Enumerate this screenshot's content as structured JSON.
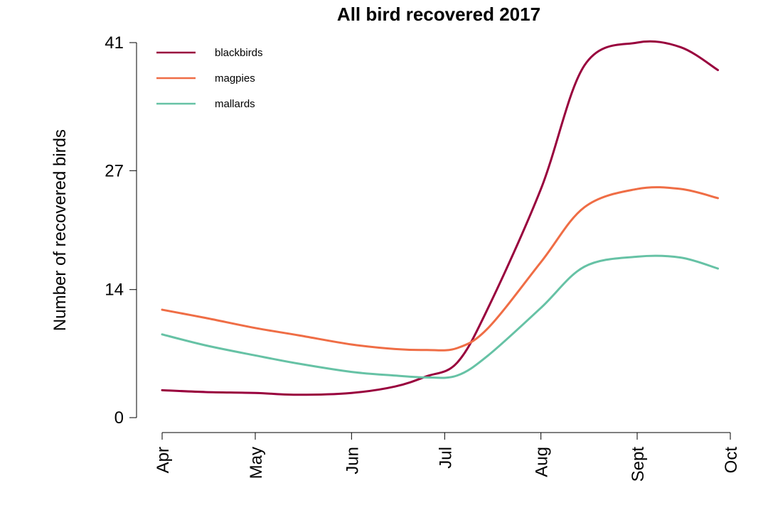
{
  "chart_data": {
    "type": "line",
    "title": "All bird recovered 2017",
    "xlabel": "",
    "ylabel": "Number of recovered birds",
    "x_ticks": [
      "Apr",
      "May",
      "Jun",
      "Jul",
      "Aug",
      "Sept",
      "Oct"
    ],
    "y_ticks": [
      0,
      14,
      27,
      41
    ],
    "ylim": [
      0,
      41
    ],
    "xlim": [
      "2017-04-01",
      "2017-10-01"
    ],
    "grid": false,
    "legend_position": "top-left",
    "x": [
      "2017-04-01",
      "2017-04-15",
      "2017-05-01",
      "2017-05-15",
      "2017-06-01",
      "2017-06-15",
      "2017-06-25",
      "2017-07-05",
      "2017-07-15",
      "2017-08-01",
      "2017-08-15",
      "2017-09-01",
      "2017-09-15",
      "2017-09-27"
    ],
    "series": [
      {
        "name": "blackbirds",
        "color": "#99003d",
        "values": [
          3.0,
          2.8,
          2.7,
          2.5,
          2.7,
          3.4,
          4.5,
          6.0,
          12.0,
          25.0,
          38.5,
          41.0,
          40.5,
          38.0
        ]
      },
      {
        "name": "magpies",
        "color": "#ef6d45",
        "values": [
          11.8,
          10.9,
          9.8,
          9.0,
          8.0,
          7.5,
          7.4,
          7.6,
          9.8,
          17.0,
          23.0,
          25.0,
          25.0,
          24.0
        ]
      },
      {
        "name": "mallards",
        "color": "#66c2a5",
        "values": [
          9.1,
          7.9,
          6.8,
          5.9,
          5.0,
          4.6,
          4.4,
          4.6,
          6.8,
          12.0,
          16.5,
          17.6,
          17.5,
          16.3
        ]
      }
    ]
  }
}
